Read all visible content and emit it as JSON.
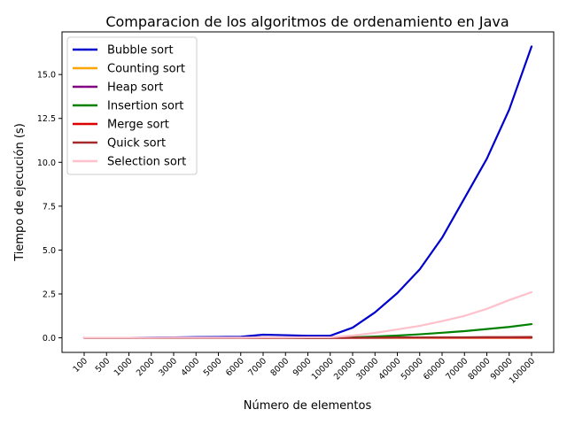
{
  "chart_data": {
    "type": "line",
    "title": "Comparacion de los algoritmos de ordenamiento en Java",
    "xlabel": "Número de elementos",
    "ylabel": "Tiempo de ejecución (s)",
    "categories": [
      "100",
      "500",
      "1000",
      "2000",
      "3000",
      "4000",
      "5000",
      "6000",
      "7000",
      "8000",
      "9000",
      "10000",
      "20000",
      "30000",
      "40000",
      "50000",
      "60000",
      "70000",
      "80000",
      "90000",
      "100000"
    ],
    "yticks": [
      "0.0",
      "2.5",
      "5.0",
      "7.5",
      "10.0",
      "12.5",
      "15.0"
    ],
    "ylim": [
      -0.83,
      17.43
    ],
    "grid": false,
    "legend_position": "top-left",
    "series": [
      {
        "name": "Bubble sort",
        "color": "#0000cc",
        "values": [
          0.0,
          0.0,
          0.0,
          0.01,
          0.02,
          0.04,
          0.05,
          0.06,
          0.18,
          0.15,
          0.12,
          0.12,
          0.58,
          1.45,
          2.55,
          3.9,
          5.7,
          7.95,
          10.2,
          13.0,
          16.6
        ]
      },
      {
        "name": "Counting sort",
        "color": "#ffa500",
        "values": [
          0.0,
          0.0,
          0.0,
          0.0,
          0.0,
          0.0,
          0.0,
          0.0,
          0.0,
          0.0,
          0.0,
          0.0,
          0.0,
          0.0,
          0.0,
          0.0,
          0.0,
          0.0,
          0.0,
          0.0,
          0.0
        ]
      },
      {
        "name": "Heap sort",
        "color": "#800080",
        "values": [
          0.0,
          0.0,
          0.0,
          0.0,
          0.0,
          0.0,
          0.0,
          0.0,
          0.0,
          0.0,
          0.0,
          0.0,
          0.0,
          0.01,
          0.01,
          0.01,
          0.01,
          0.02,
          0.02,
          0.02,
          0.02
        ]
      },
      {
        "name": "Insertion sort",
        "color": "#008000",
        "values": [
          0.0,
          0.0,
          0.0,
          0.0,
          0.0,
          0.0,
          0.0,
          0.0,
          0.0,
          0.0,
          0.0,
          0.0,
          0.03,
          0.07,
          0.13,
          0.2,
          0.29,
          0.38,
          0.5,
          0.62,
          0.78
        ]
      },
      {
        "name": "Merge sort",
        "color": "#dd0000",
        "values": [
          0.0,
          0.0,
          0.0,
          0.0,
          0.0,
          0.0,
          0.0,
          0.0,
          0.0,
          0.0,
          0.0,
          0.0,
          0.0,
          0.0,
          0.01,
          0.01,
          0.01,
          0.01,
          0.01,
          0.01,
          0.01
        ]
      },
      {
        "name": "Quick sort",
        "color": "#a52a2a",
        "values": [
          0.0,
          0.0,
          0.0,
          0.0,
          0.0,
          0.0,
          0.0,
          0.0,
          0.0,
          0.0,
          0.0,
          0.0,
          0.01,
          0.01,
          0.02,
          0.02,
          0.03,
          0.03,
          0.04,
          0.04,
          0.05
        ]
      },
      {
        "name": "Selection sort",
        "color": "#ffc0cb",
        "values": [
          0.0,
          0.0,
          0.0,
          0.0,
          0.01,
          0.01,
          0.01,
          0.01,
          0.02,
          0.02,
          0.03,
          0.03,
          0.13,
          0.28,
          0.48,
          0.68,
          0.95,
          1.25,
          1.65,
          2.15,
          2.6
        ]
      }
    ]
  }
}
